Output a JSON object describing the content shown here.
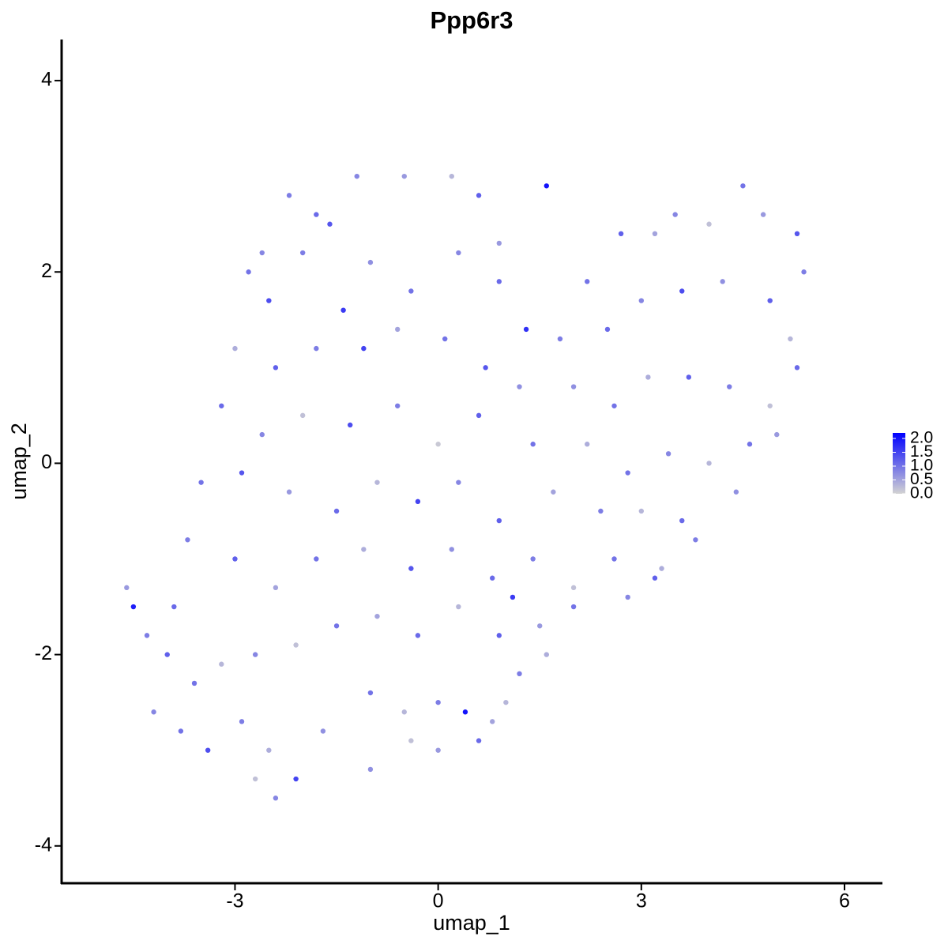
{
  "chart_data": {
    "type": "scatter",
    "title": "Ppp6r3",
    "x_label": "umap_1",
    "y_label": "umap_2",
    "x": [
      -2.2,
      -1.8,
      -1.2,
      -0.5,
      0.2,
      0.6,
      1.6,
      -2.8,
      -2.5,
      -2.0,
      -1.4,
      -1.0,
      -0.4,
      0.3,
      0.9,
      -3.0,
      -2.4,
      -1.8,
      -1.1,
      -0.6,
      0.1,
      0.7,
      1.3,
      -3.2,
      -2.6,
      -2.0,
      -1.3,
      -0.6,
      0.0,
      0.6,
      1.2,
      -3.5,
      -2.9,
      -2.2,
      -1.5,
      -0.9,
      -0.3,
      0.3,
      0.9,
      -3.7,
      -3.0,
      -2.4,
      -1.8,
      -1.1,
      -0.4,
      0.2,
      0.8,
      1.4,
      -4.6,
      -4.5,
      -4.3,
      -4.0,
      -3.6,
      -3.2,
      -2.7,
      -2.1,
      -1.5,
      -0.9,
      -0.3,
      0.3,
      0.9,
      1.5,
      2.0,
      -3.8,
      -3.4,
      -2.9,
      -2.5,
      -2.1,
      -1.7,
      -1.0,
      -0.5,
      0.0,
      0.4,
      0.8,
      -2.4,
      -2.7,
      -1.0,
      -0.4,
      0.0,
      0.6,
      1.8,
      2.2,
      2.7,
      3.2,
      3.5,
      4.0,
      4.5,
      4.8,
      5.3,
      5.4,
      2.5,
      3.0,
      3.6,
      4.2,
      4.9,
      5.2,
      2.0,
      2.6,
      3.1,
      3.7,
      4.3,
      4.9,
      5.3,
      2.2,
      2.8,
      3.4,
      4.0,
      4.6,
      5.0,
      2.4,
      3.0,
      3.6,
      4.4,
      2.6,
      3.3,
      3.8,
      2.0,
      2.8,
      3.2,
      1.2,
      1.6,
      1.0,
      0.9,
      -1.6,
      -2.6,
      1.4,
      1.7,
      1.1,
      -4.2,
      -3.9
    ],
    "y": [
      2.8,
      2.6,
      3.0,
      3.0,
      3.0,
      2.8,
      2.9,
      2.0,
      1.7,
      2.2,
      1.6,
      2.1,
      1.8,
      2.2,
      1.9,
      1.2,
      1.0,
      1.2,
      1.2,
      1.4,
      1.3,
      1.0,
      1.4,
      0.6,
      0.3,
      0.5,
      0.4,
      0.6,
      0.2,
      0.5,
      0.8,
      -0.2,
      -0.1,
      -0.3,
      -0.5,
      -0.2,
      -0.4,
      -0.2,
      -0.6,
      -0.8,
      -1.0,
      -1.3,
      -1.0,
      -0.9,
      -1.1,
      -0.9,
      -1.2,
      -1.0,
      -1.3,
      -1.5,
      -1.8,
      -2.0,
      -2.3,
      -2.1,
      -2.0,
      -1.9,
      -1.7,
      -1.6,
      -1.8,
      -1.5,
      -1.8,
      -1.7,
      -1.5,
      -2.8,
      -3.0,
      -2.7,
      -3.0,
      -3.3,
      -2.8,
      -2.4,
      -2.6,
      -2.5,
      -2.6,
      -2.7,
      -3.5,
      -3.3,
      -3.2,
      -2.9,
      -3.0,
      -2.9,
      1.3,
      1.9,
      2.4,
      2.4,
      2.6,
      2.5,
      2.9,
      2.6,
      2.4,
      2.0,
      1.4,
      1.7,
      1.8,
      1.9,
      1.7,
      1.3,
      0.8,
      0.6,
      0.9,
      0.9,
      0.8,
      0.6,
      1.0,
      0.2,
      -0.1,
      0.1,
      0.0,
      0.2,
      0.3,
      -0.5,
      -0.5,
      -0.6,
      -0.3,
      -1.0,
      -1.1,
      -0.8,
      -1.3,
      -1.4,
      -1.2,
      -2.2,
      -2.0,
      -2.5,
      2.3,
      2.5,
      2.2,
      0.2,
      -0.3,
      -1.4,
      -2.6,
      -1.5
    ],
    "values": [
      0.9,
      1.1,
      0.8,
      0.6,
      0.3,
      1.2,
      2.0,
      1.0,
      1.4,
      0.9,
      1.6,
      0.7,
      1.0,
      0.8,
      1.1,
      0.4,
      1.2,
      0.9,
      1.5,
      0.5,
      1.0,
      1.3,
      1.7,
      1.1,
      0.8,
      0.2,
      1.4,
      0.9,
      0.1,
      1.2,
      0.7,
      1.0,
      1.3,
      0.6,
      1.1,
      0.3,
      1.5,
      0.8,
      1.2,
      0.9,
      1.2,
      0.5,
      1.0,
      0.4,
      1.3,
      0.7,
      1.1,
      0.9,
      0.6,
      1.9,
      0.9,
      1.2,
      1.0,
      0.3,
      0.8,
      0.2,
      1.0,
      0.5,
      1.1,
      0.3,
      1.2,
      0.6,
      1.0,
      1.0,
      1.4,
      0.9,
      0.4,
      1.5,
      0.7,
      1.0,
      0.3,
      0.9,
      2.0,
      0.5,
      0.8,
      0.2,
      0.7,
      0.2,
      0.6,
      1.1,
      0.9,
      1.0,
      1.2,
      0.5,
      0.8,
      0.2,
      1.0,
      0.6,
      1.3,
      0.9,
      1.1,
      0.8,
      1.4,
      0.7,
      1.2,
      0.3,
      0.7,
      1.0,
      0.4,
      1.2,
      0.9,
      0.2,
      1.1,
      0.4,
      1.0,
      0.8,
      0.3,
      1.0,
      0.6,
      0.9,
      0.3,
      1.1,
      0.7,
      1.0,
      0.4,
      0.9,
      0.2,
      0.8,
      1.2,
      0.9,
      0.4,
      0.3,
      0.6,
      1.3,
      0.8,
      1.0,
      0.5,
      1.6,
      0.8,
      1.1
    ],
    "colors": [
      "#d3d3d3",
      "#0000ff"
    ],
    "xlim": [
      -5.56,
      6.56
    ],
    "ylim": [
      -4.39,
      4.43
    ],
    "xticks": [
      -3,
      0,
      3,
      6
    ],
    "yticks": [
      -4,
      -2,
      0,
      2,
      4
    ],
    "clim": [
      0,
      2.2
    ],
    "cticks": [
      {
        "value": 0,
        "label": "0.0"
      },
      {
        "value": 0.5,
        "label": "0.5"
      },
      {
        "value": 1,
        "label": "1.0"
      },
      {
        "value": 1.5,
        "label": "1.5"
      },
      {
        "value": 2,
        "label": "2.0"
      }
    ]
  }
}
